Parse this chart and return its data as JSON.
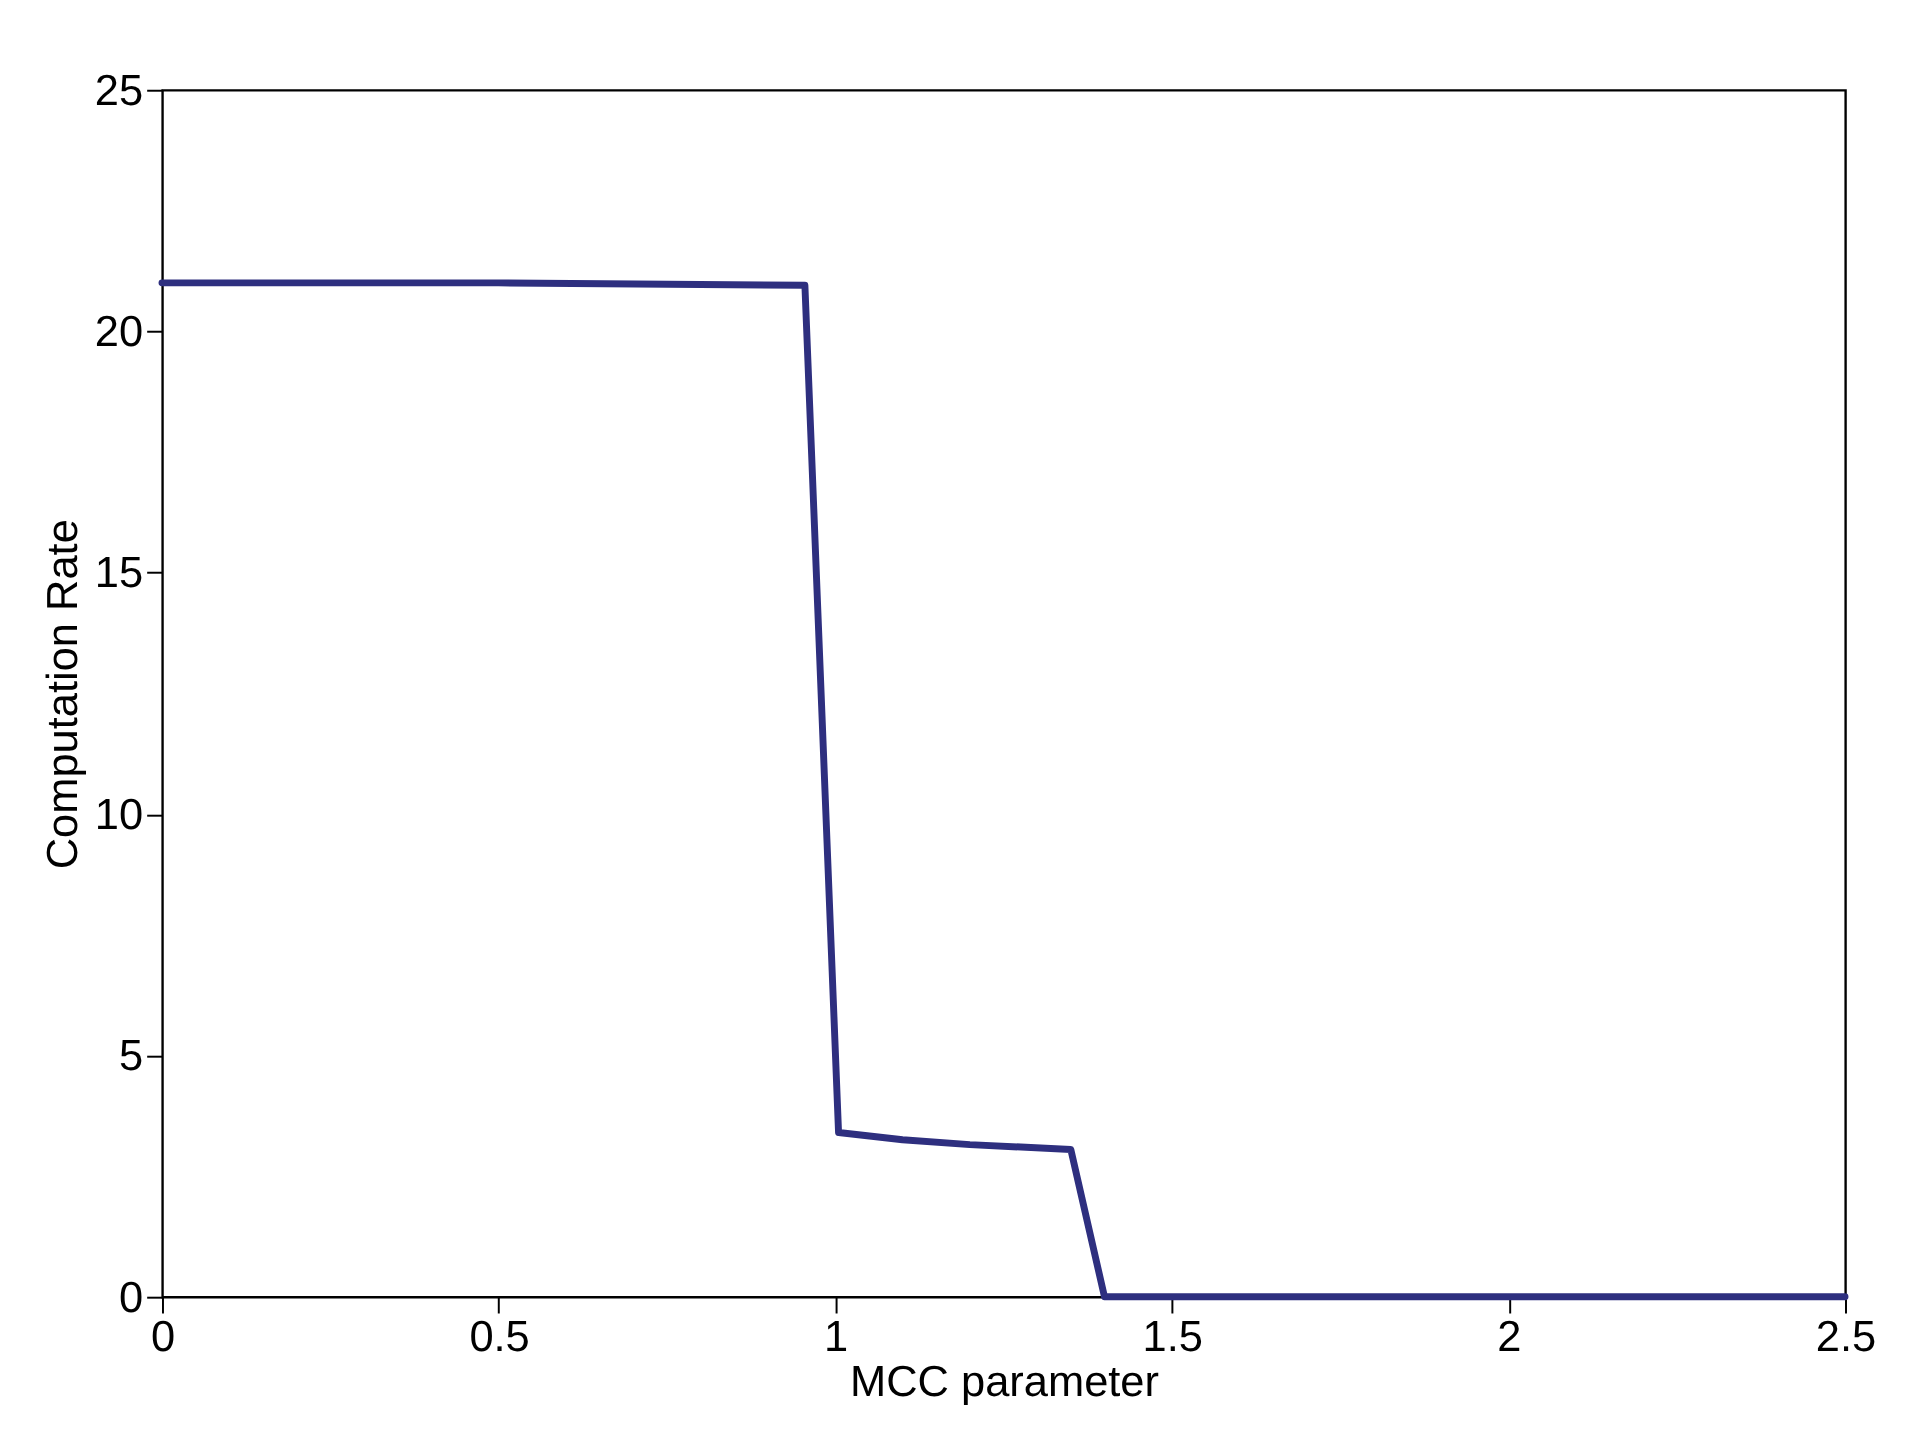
{
  "chart_data": {
    "type": "line",
    "xlabel": "MCC parameter",
    "ylabel": "Computation Rate",
    "x": [
      0,
      0.5,
      0.955,
      1.005,
      1.1,
      1.2,
      1.35,
      1.4,
      2.0,
      2.5
    ],
    "series": [
      {
        "color": "#2e2f7f",
        "values": [
          21,
          21,
          20.95,
          3.4,
          3.25,
          3.15,
          3.05,
          0,
          0,
          0
        ]
      }
    ],
    "xlim": [
      0,
      2.5
    ],
    "xticks": [
      0,
      0.5,
      1,
      1.5,
      2,
      2.5
    ],
    "ylim": [
      0,
      25
    ],
    "yticks": [
      0,
      5,
      10,
      15,
      20,
      25
    ],
    "grid": false,
    "marker": "none",
    "line_style": "solid"
  }
}
